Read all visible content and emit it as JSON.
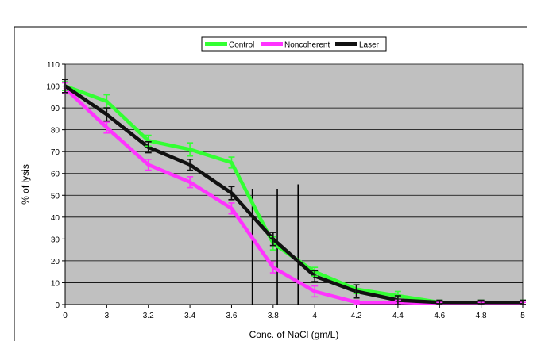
{
  "chart_data": {
    "type": "line",
    "xlabel": "Conc. of NaCl  (gm/L)",
    "ylabel": "% of lysis",
    "ylim": [
      0,
      110
    ],
    "y_ticks": [
      0,
      10,
      20,
      30,
      40,
      50,
      60,
      70,
      80,
      90,
      100,
      110
    ],
    "categories": [
      "0",
      "3",
      "3.2",
      "3.4",
      "3.6",
      "3.8",
      "4",
      "4.2",
      "4.4",
      "4.6",
      "4.8",
      "5"
    ],
    "grid": "horizontal",
    "legend_position": "top-center",
    "series": [
      {
        "name": "Control",
        "color": "#33ff33",
        "values": [
          100,
          93,
          75,
          71,
          65,
          28,
          15,
          7,
          4,
          1,
          1,
          1
        ],
        "errors": [
          2,
          3,
          2.5,
          3,
          2.5,
          3,
          2,
          2,
          2,
          1,
          1,
          1
        ]
      },
      {
        "name": "Noncoherent",
        "color": "#ff33ff",
        "values": [
          99,
          81,
          64,
          56,
          44,
          17,
          6,
          1,
          1,
          0.5,
          0.5,
          0.5
        ],
        "errors": [
          2.5,
          2.5,
          2.5,
          2.5,
          2.5,
          2.5,
          2.5,
          1,
          1,
          0.5,
          0.5,
          0.5
        ]
      },
      {
        "name": "Laser",
        "color": "#111111",
        "values": [
          100,
          87,
          72,
          64,
          51,
          30,
          13,
          6,
          2,
          1,
          1,
          1
        ],
        "errors": [
          3,
          3,
          2.5,
          2.5,
          3,
          3,
          2.5,
          3,
          2,
          1,
          1,
          1
        ]
      }
    ],
    "reference_lines": [
      {
        "x_index": 4.5,
        "top": 53
      },
      {
        "x_index": 5.1,
        "top": 53
      },
      {
        "x_index": 5.6,
        "top": 55
      }
    ]
  }
}
